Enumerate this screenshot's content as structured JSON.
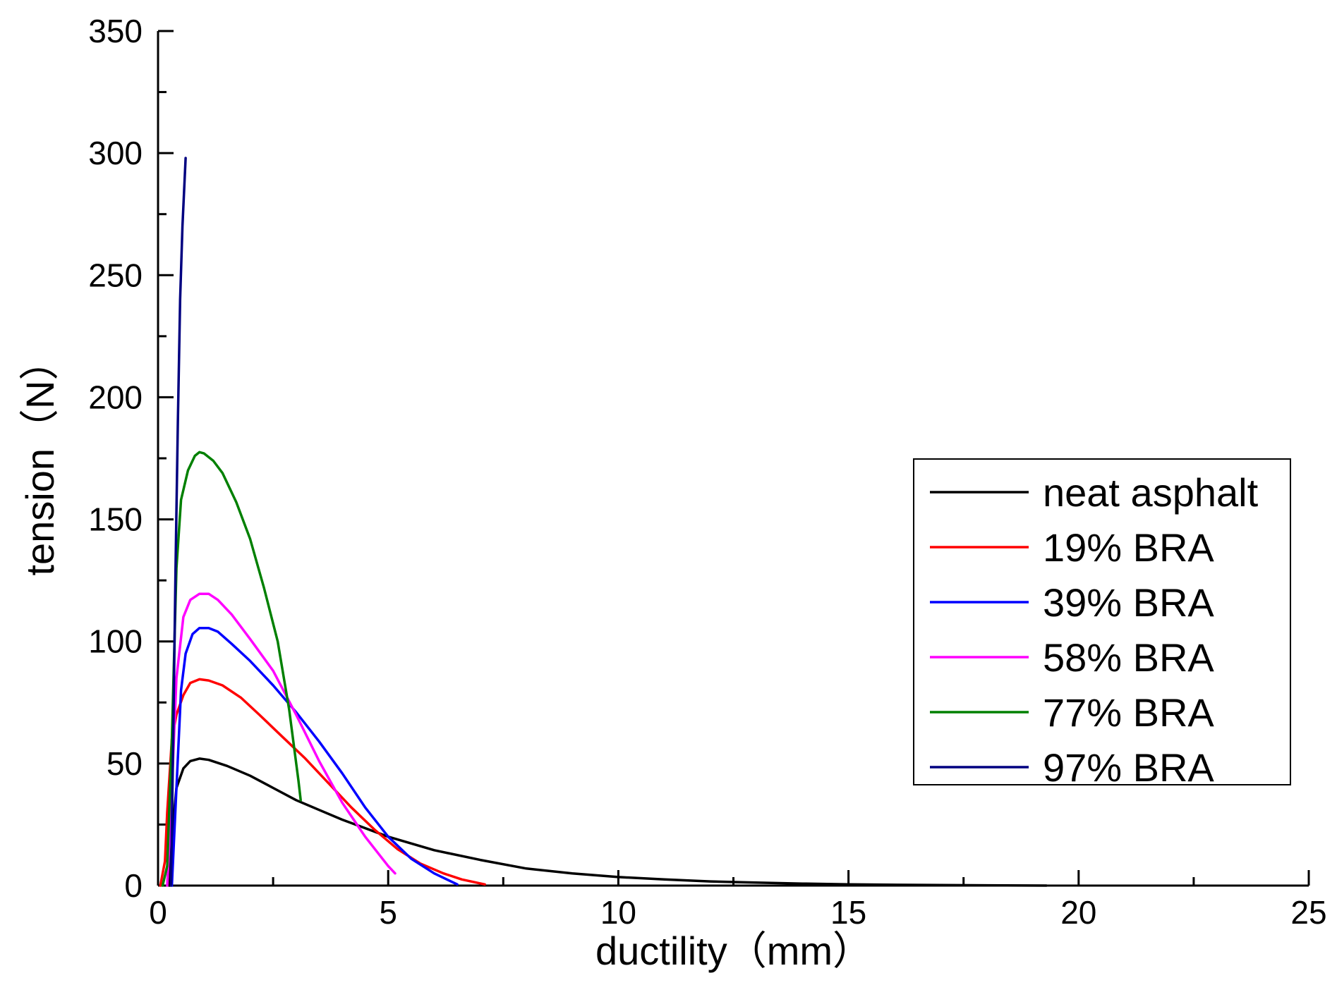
{
  "chart_data": {
    "type": "line",
    "title": "",
    "xlabel": "ductility（mm）",
    "ylabel": "tension（N）",
    "xlim": [
      0,
      25
    ],
    "ylim": [
      0,
      350
    ],
    "x_ticks": [
      0,
      5,
      10,
      15,
      20,
      25
    ],
    "x_tick_labels": [
      "0",
      "5",
      "10",
      "15",
      "20",
      "25"
    ],
    "y_ticks": [
      0,
      50,
      100,
      150,
      200,
      250,
      300,
      350
    ],
    "y_tick_labels": [
      "0",
      "50",
      "100",
      "150",
      "200",
      "250",
      "300",
      "350"
    ],
    "grid": false,
    "legend_position": "center-right",
    "series": [
      {
        "name": "neat asphalt",
        "color": "#000000",
        "points": [
          [
            0.25,
            0
          ],
          [
            0.3,
            20
          ],
          [
            0.4,
            40
          ],
          [
            0.55,
            48
          ],
          [
            0.7,
            51
          ],
          [
            0.9,
            52
          ],
          [
            1.1,
            51.5
          ],
          [
            1.5,
            49
          ],
          [
            2.0,
            45
          ],
          [
            2.5,
            40
          ],
          [
            3.0,
            35
          ],
          [
            3.5,
            31
          ],
          [
            4.0,
            27
          ],
          [
            5.0,
            20
          ],
          [
            6.0,
            14.5
          ],
          [
            7.0,
            10.5
          ],
          [
            8.0,
            7
          ],
          [
            9.0,
            5
          ],
          [
            10.0,
            3.5
          ],
          [
            11.0,
            2.5
          ],
          [
            12.0,
            1.7
          ],
          [
            13.0,
            1.2
          ],
          [
            14.0,
            0.8
          ],
          [
            15.0,
            0.5
          ],
          [
            17.0,
            0.2
          ],
          [
            19.3,
            0
          ]
        ]
      },
      {
        "name": "19% BRA",
        "color": "#ff0000",
        "points": [
          [
            0.05,
            0
          ],
          [
            0.15,
            10
          ],
          [
            0.2,
            30
          ],
          [
            0.3,
            60
          ],
          [
            0.4,
            70
          ],
          [
            0.55,
            78
          ],
          [
            0.7,
            83
          ],
          [
            0.9,
            84.5
          ],
          [
            1.1,
            84
          ],
          [
            1.4,
            82
          ],
          [
            1.8,
            77
          ],
          [
            2.2,
            70
          ],
          [
            2.7,
            61
          ],
          [
            3.2,
            52
          ],
          [
            3.7,
            42
          ],
          [
            4.2,
            32
          ],
          [
            4.7,
            23
          ],
          [
            5.2,
            15
          ],
          [
            5.7,
            9
          ],
          [
            6.2,
            5
          ],
          [
            6.6,
            2.5
          ],
          [
            7.1,
            0.5
          ]
        ]
      },
      {
        "name": "39% BRA",
        "color": "#0000ff",
        "points": [
          [
            0.3,
            0
          ],
          [
            0.4,
            40
          ],
          [
            0.5,
            80
          ],
          [
            0.6,
            95
          ],
          [
            0.75,
            103
          ],
          [
            0.9,
            105.5
          ],
          [
            1.1,
            105.5
          ],
          [
            1.3,
            104
          ],
          [
            1.6,
            99
          ],
          [
            2.0,
            92
          ],
          [
            2.5,
            82
          ],
          [
            3.0,
            71
          ],
          [
            3.5,
            59
          ],
          [
            4.0,
            46
          ],
          [
            4.5,
            32
          ],
          [
            5.0,
            20
          ],
          [
            5.5,
            11
          ],
          [
            6.0,
            5
          ],
          [
            6.5,
            0.5
          ]
        ]
      },
      {
        "name": "58% BRA",
        "color": "#ff00ff",
        "points": [
          [
            0.2,
            0
          ],
          [
            0.3,
            40
          ],
          [
            0.4,
            85
          ],
          [
            0.55,
            110
          ],
          [
            0.7,
            117
          ],
          [
            0.9,
            119.5
          ],
          [
            1.1,
            119.5
          ],
          [
            1.3,
            117
          ],
          [
            1.6,
            111
          ],
          [
            2.0,
            101
          ],
          [
            2.5,
            88
          ],
          [
            3.0,
            70
          ],
          [
            3.5,
            51
          ],
          [
            4.0,
            34
          ],
          [
            4.5,
            20
          ],
          [
            5.0,
            8
          ],
          [
            5.15,
            5
          ]
        ]
      },
      {
        "name": "77% BRA",
        "color": "#008000",
        "points": [
          [
            0.1,
            0
          ],
          [
            0.2,
            8
          ],
          [
            0.3,
            60
          ],
          [
            0.4,
            130
          ],
          [
            0.5,
            158
          ],
          [
            0.65,
            170
          ],
          [
            0.8,
            176
          ],
          [
            0.9,
            177.5
          ],
          [
            1.0,
            177
          ],
          [
            1.2,
            174
          ],
          [
            1.4,
            169
          ],
          [
            1.7,
            157
          ],
          [
            2.0,
            142
          ],
          [
            2.3,
            122
          ],
          [
            2.6,
            100
          ],
          [
            2.85,
            72
          ],
          [
            3.05,
            43
          ],
          [
            3.1,
            35
          ]
        ]
      },
      {
        "name": "97% BRA",
        "color": "#000080",
        "points": [
          [
            0.28,
            0
          ],
          [
            0.33,
            60
          ],
          [
            0.38,
            130
          ],
          [
            0.43,
            190
          ],
          [
            0.48,
            240
          ],
          [
            0.53,
            270
          ],
          [
            0.6,
            298
          ]
        ]
      }
    ]
  }
}
